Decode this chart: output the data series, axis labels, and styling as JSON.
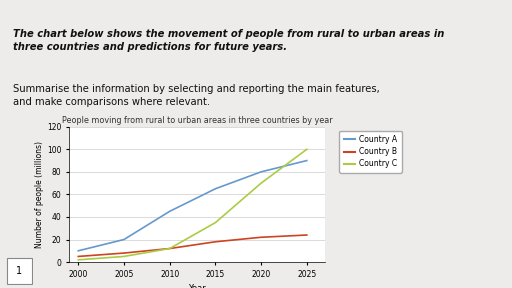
{
  "title": "People moving from rural to urban areas in three countries by year",
  "xlabel": "Year",
  "ylabel": "Number of people (millions)",
  "header_bold_italic": "The chart below shows the movement of people from rural to urban areas in\nthree countries and predictions for future years.",
  "header_normal": "Summarise the information by selecting and reporting the main features,\nand make comparisons where relevant.",
  "orange_bar_color": "#E8A020",
  "country_a": {
    "label": "Country A",
    "color": "#6699CC",
    "years": [
      2000,
      2005,
      2010,
      2015,
      2020,
      2025
    ],
    "values": [
      10,
      20,
      45,
      65,
      80,
      90
    ]
  },
  "country_b": {
    "label": "Country B",
    "color": "#CC4422",
    "years": [
      2000,
      2005,
      2010,
      2015,
      2020,
      2025
    ],
    "values": [
      5,
      8,
      12,
      18,
      22,
      24
    ]
  },
  "country_c": {
    "label": "Country C",
    "color": "#AACC44",
    "years": [
      2000,
      2005,
      2010,
      2015,
      2020,
      2025
    ],
    "values": [
      2,
      5,
      12,
      35,
      70,
      100
    ]
  },
  "ylim": [
    0,
    120
  ],
  "yticks": [
    0,
    20,
    40,
    60,
    80,
    100,
    120
  ],
  "xlim": [
    1999,
    2027
  ],
  "xticks": [
    2000,
    2005,
    2010,
    2015,
    2020,
    2025
  ],
  "bg_color": "#EDECEA",
  "page_number": "1"
}
